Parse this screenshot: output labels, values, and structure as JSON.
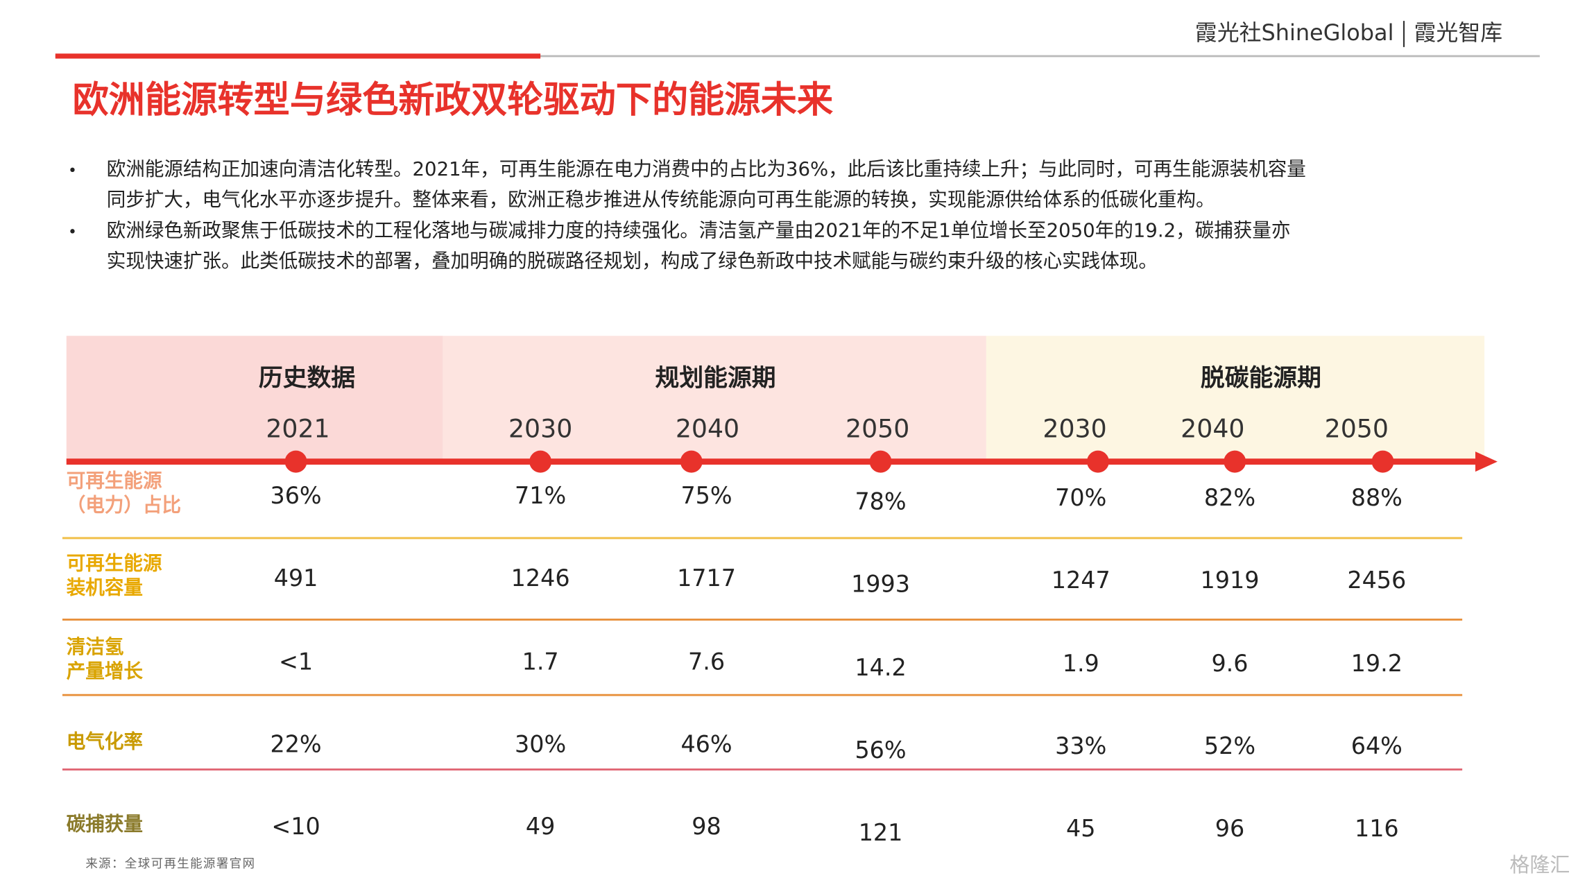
{
  "header": {
    "brand": "霞光社ShineGlobal",
    "brand2": "霞光智库"
  },
  "title": "欧洲能源转型与绿色新政双轮驱动下的能源未来",
  "bullets": [
    [
      "欧洲能源结构正加速向清洁化转型。2021年，可再生能源在电力消费中的占比为36%，此后该比重持续上升；与此同时，可再生能源装机容量",
      "同步扩大，电气化水平亦逐步提升。整体来看，欧洲正稳步推进从传统能源向可再生能源的转换，实现能源供给体系的低碳化重构。"
    ],
    [
      "欧洲绿色新政聚焦于低碳技术的工程化落地与碳减排力度的持续强化。清洁氢产量由2021年的不足1单位增长至2050年的19.2，碳捕获量亦",
      "实现快速扩张。此类低碳技术的部署，叠加明确的脱碳路径规划，构成了绿色新政中技术赋能与碳约束升级的核心实践体现。"
    ]
  ],
  "table": {
    "groups": [
      {
        "label": "历史数据",
        "years": [
          "2021"
        ]
      },
      {
        "label": "规划能源期",
        "years": [
          "2030",
          "2040",
          "2050"
        ]
      },
      {
        "label": "脱碳能源期",
        "years": [
          "2030",
          "2040",
          "2050"
        ]
      }
    ],
    "rows": [
      {
        "label": [
          "可再生能源",
          "（电力）占比"
        ],
        "values": [
          "36%",
          "71%",
          "75%",
          "78%",
          "70%",
          "82%",
          "88%"
        ]
      },
      {
        "label": [
          "可再生能源",
          "装机容量"
        ],
        "values": [
          "491",
          "1246",
          "1717",
          "1993",
          "1247",
          "1919",
          "2456"
        ]
      },
      {
        "label": [
          "清洁氢",
          "产量增长"
        ],
        "values": [
          "<1",
          "1.7",
          "7.6",
          "14.2",
          "1.9",
          "9.6",
          "19.2"
        ]
      },
      {
        "label": [
          "电气化率"
        ],
        "values": [
          "22%",
          "30%",
          "46%",
          "56%",
          "33%",
          "52%",
          "64%"
        ]
      },
      {
        "label": [
          "碳捕获量"
        ],
        "values": [
          "<10",
          "49",
          "98",
          "121",
          "45",
          "96",
          "116"
        ]
      }
    ]
  },
  "source": "来源：全球可再生能源署官网",
  "watermark": "格隆汇"
}
